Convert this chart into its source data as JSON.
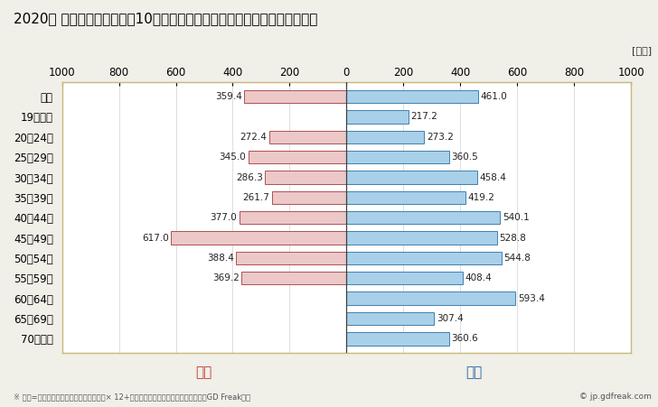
{
  "title": "2020年 民間企業（従業者数10人以上）フルタイム労働者の男女別平均年収",
  "unit_label": "[万円]",
  "categories": [
    "全体",
    "19歳以下",
    "20〜24歳",
    "25〜29歳",
    "30〜34歳",
    "35〜39歳",
    "40〜44歳",
    "45〜49歳",
    "50〜54歳",
    "55〜59歳",
    "60〜64歳",
    "65〜69歳",
    "70歳以上"
  ],
  "female_values": [
    359.4,
    0.0,
    272.4,
    345.0,
    286.3,
    261.7,
    377.0,
    617.0,
    388.4,
    369.2,
    0.0,
    0.0,
    0.0
  ],
  "male_values": [
    461.0,
    217.2,
    273.2,
    360.5,
    458.4,
    419.2,
    540.1,
    528.8,
    544.8,
    408.4,
    593.4,
    307.4,
    360.6
  ],
  "female_color": "#ECC8C8",
  "male_color": "#A8D0E8",
  "female_border_color": "#B05050",
  "male_border_color": "#4080B0",
  "female_label": "女性",
  "male_label": "男性",
  "female_label_color": "#C0392B",
  "male_label_color": "#2060A0",
  "xlim": 1000,
  "background_color": "#F0EFE8",
  "plot_bg_color": "#FFFFFF",
  "plot_border_color": "#C8B878",
  "footer_text": "※ 年収=「きまって支給する現金給与額」× 12+「年間賞与その他特別給与額」としてGD Freak推計",
  "copyright_text": "© jp.gdfreak.com",
  "title_fontsize": 11,
  "tick_fontsize": 8.5,
  "label_fontsize": 7.5,
  "bar_height": 0.65,
  "grid_color": "#D0D0D0",
  "center_line_color": "#404040"
}
